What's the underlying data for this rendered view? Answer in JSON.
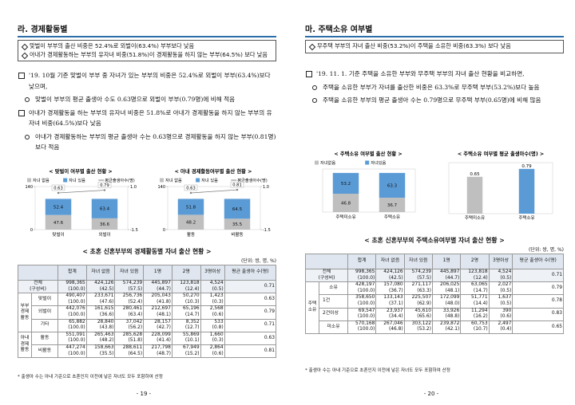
{
  "pages": [
    {
      "title": "라. 경제활동별",
      "summary": [
        "맞벌이 부부의 출산 비중은 52.4%로 외벌이(63.4%) 부부보다 낮음",
        "아내가 경제활동하는 부부의 유자녀 비중(51.8%)이 경제활동을 하지 않는 부부(64.5%) 보다 낮음"
      ],
      "paragraphs": [
        {
          "level": 0,
          "text": "'19. 10월 기준 맞벌이 부부 중 자녀가 있는 부부의 비중은 52.4%로 외벌이 부부(63.4%)보다 낮으며,"
        },
        {
          "level": 1,
          "text": "맞벌이 부부의 평균 출생아 수도 0.63명으로 외벌이 부부(0.79명)에 비해 적음"
        },
        {
          "level": 0,
          "text": "아내가 경제활동을 하는 부부의 유자녀 비중은 51.8%로 아내가 경제활동을 하지 않는 부부의 유자녀 비중(64.5%)보다 낮음"
        },
        {
          "level": 1,
          "text": "아내가 경제활동하는 부부의 평균 출생아 수는 0.63명으로 경제활동을 하지 않는 부부(0.81명) 보다 적음"
        }
      ],
      "charts": [
        {
          "type": "stacked-line",
          "title": "< 맞벌이 여부별 출산 현황 >",
          "categories": [
            "맞벌이",
            "외벌이"
          ],
          "series": [
            {
              "name": "자녀 없음",
              "color": "#bfbfbf",
              "values": [
                47.6,
                36.6
              ]
            },
            {
              "name": "자녀 있음",
              "color": "#5b9bd5",
              "values": [
                52.4,
                63.4
              ]
            }
          ],
          "line": {
            "name": "평균출생아수(명)",
            "color": "#7f7f7f",
            "values": [
              0.63,
              0.79
            ]
          },
          "ylim": [
            0,
            140
          ],
          "yticks": [
            0,
            140
          ],
          "y2lim": [
            -1.5,
            1
          ],
          "y2ticks": [
            {
              "value": -1.5,
              "label": "-1.5"
            },
            {
              "value": 1,
              "label": "1.0"
            }
          ]
        },
        {
          "type": "stacked-line",
          "title": "< 아내 경제활동여부별 출산 현황 >",
          "categories": [
            "활동",
            "비활동"
          ],
          "series": [
            {
              "name": "자녀 없음",
              "color": "#bfbfbf",
              "values": [
                48.2,
                35.5
              ]
            },
            {
              "name": "자녀 있음",
              "color": "#5b9bd5",
              "values": [
                51.8,
                64.5
              ]
            }
          ],
          "line": {
            "name": "평균출생아수(명)",
            "color": "#7f7f7f",
            "values": [
              0.63,
              0.81
            ]
          },
          "ylim": [
            0,
            140
          ],
          "yticks": [
            0,
            140
          ],
          "y2lim": [
            -1.5,
            1
          ],
          "y2ticks": [
            {
              "value": -1.5,
              "label": "-1.5"
            },
            {
              "value": 1,
              "label": "1.0"
            }
          ]
        }
      ],
      "table": {
        "title": "< 초혼 신혼부부의 경제활동별 자녀 출산 현황 >",
        "unit": "(단위: 쌍, 명, %)",
        "headers": [
          "합계",
          "자녀 없음",
          "자녀 있음",
          "1명",
          "2명",
          "3명이상",
          "평균 출생아 수(명)"
        ],
        "total": {
          "label": "전체",
          "sublabel": "(구성비)",
          "values": [
            "998,365",
            "424,126",
            "574,239",
            "445,897",
            "123,818",
            "4,524"
          ],
          "shares": [
            "(100.0)",
            "(42.5)",
            "(57.5)",
            "(44.7)",
            "(12.4)",
            "(0.5)"
          ],
          "avg": "0.71"
        },
        "groups": [
          {
            "label": "부부 경제 활동",
            "rows": [
              {
                "label": "맞벌이",
                "values": [
                  "490,407",
                  "233,671",
                  "256,736",
                  "205,043",
                  "50,270",
                  "1,423"
                ],
                "shares": [
                  "(100.0)",
                  "(47.6)",
                  "(52.4)",
                  "(41.8)",
                  "(10.3)",
                  "(0.3)"
                ],
                "avg": "0.63"
              },
              {
                "label": "외벌이",
                "values": [
                  "442,076",
                  "161,615",
                  "280,461",
                  "212,697",
                  "65,196",
                  "2,568"
                ],
                "shares": [
                  "(100.0)",
                  "(36.6)",
                  "(63.4)",
                  "(48.1)",
                  "(14.7)",
                  "(0.6)"
                ],
                "avg": "0.79"
              },
              {
                "label": "기타",
                "values": [
                  "65,882",
                  "28,840",
                  "37,042",
                  "28,157",
                  "8,352",
                  "533"
                ],
                "shares": [
                  "(100.0)",
                  "(43.8)",
                  "(56.2)",
                  "(42.7)",
                  "(12.7)",
                  "(0.8)"
                ],
                "avg": "0.71"
              }
            ]
          },
          {
            "label": "아내 경제 활동",
            "rows": [
              {
                "label": "활동",
                "values": [
                  "551,091",
                  "265,463",
                  "285,628",
                  "228,099",
                  "55,869",
                  "1,660"
                ],
                "shares": [
                  "(100.0)",
                  "(48.2)",
                  "(51.8)",
                  "(41.4)",
                  "(10.1)",
                  "(0.3)"
                ],
                "avg": "0.63"
              },
              {
                "label": "비활동",
                "values": [
                  "447,274",
                  "158,663",
                  "288,611",
                  "217,798",
                  "67,949",
                  "2,864"
                ],
                "shares": [
                  "(100.0)",
                  "(35.5)",
                  "(64.5)",
                  "(48.7)",
                  "(15.2)",
                  "(0.6)"
                ],
                "avg": "0.81"
              }
            ]
          }
        ]
      },
      "footnote": "* 출생아 수는 아내 기준으로 초혼인지 이전에 낳은 자녀도 모두 포함하여 산정",
      "page_number": "- 19 -"
    },
    {
      "title": "마. 주택소유 여부별",
      "summary": [
        "무주택 부부의 자녀 출산 비중(53.2%)이 주택을 소유한 비중(63.3%) 보다 낮음"
      ],
      "paragraphs": [
        {
          "level": 0,
          "text": "'19. 11. 1. 기준 주택을 소유한 부부와 무주택 부부의 자녀 출산 현황을 비교하면,"
        },
        {
          "level": 1,
          "text": "주택을 소유한 부부가 자녀를 출산한 비중은 63.3%로 무주택 부부(53.2%)보다 높음"
        },
        {
          "level": 1,
          "text": "주택을 소유한 부부의 평균 출생아 수는 0.79명으로 무주택 부부(0.65명)에 비해 많음"
        }
      ],
      "charts": [
        {
          "type": "stacked",
          "title": "< 주택소유 여부별 출산 현황 >",
          "categories": [
            "주택미소유",
            "주택소유"
          ],
          "series": [
            {
              "name": "자녀없음",
              "color": "#bfbfbf",
              "values": [
                46.8,
                36.7
              ]
            },
            {
              "name": "자녀있음",
              "color": "#5b9bd5",
              "values": [
                53.2,
                63.3
              ]
            }
          ],
          "ylim": [
            0,
            110
          ]
        },
        {
          "type": "bar",
          "title": "< 주택소유 여부별 평균 출생아수(명) >",
          "categories": [
            "주택미소유",
            "주택소유"
          ],
          "values": [
            0.65,
            0.79
          ],
          "colors": [
            "#bfbfbf",
            "#5b9bd5"
          ],
          "ylim": [
            0,
            0.9
          ]
        }
      ],
      "table": {
        "title": "< 초혼 신혼부부의 주택소유여부별 자녀 출산 현황 >",
        "unit": "(단위: 쌍, 명, %)",
        "headers": [
          "합계",
          "자녀 없음",
          "자녀 있음",
          "1명",
          "2명",
          "3명이상",
          "평균 출생아 수(명)"
        ],
        "total": {
          "label": "전체",
          "sublabel": "(구성비)",
          "values": [
            "998,365",
            "424,126",
            "574,239",
            "445,897",
            "123,818",
            "4,524"
          ],
          "shares": [
            "(100.0)",
            "(42.5)",
            "(57.5)",
            "(44.7)",
            "(12.4)",
            "(0.5)"
          ],
          "avg": "0.71"
        },
        "groups": [
          {
            "label": "주택 소유",
            "rows": [
              {
                "label": "소유",
                "values": [
                  "428,197",
                  "157,080",
                  "271,117",
                  "206,025",
                  "63,065",
                  "2,027"
                ],
                "shares": [
                  "(100.0)",
                  "(36.7)",
                  "(63.3)",
                  "(48.1)",
                  "(14.7)",
                  "(0.5)"
                ],
                "avg": "0.79"
              },
              {
                "label": "1건",
                "sub": true,
                "values": [
                  "358,650",
                  "133,143",
                  "225,507",
                  "172,099",
                  "51,771",
                  "1,637"
                ],
                "shares": [
                  "(100.0)",
                  "(37.1)",
                  "(62.9)",
                  "(48.0)",
                  "(14.4)",
                  "(0.5)"
                ],
                "avg": "0.78"
              },
              {
                "label": "2건이상",
                "sub": true,
                "values": [
                  "69,547",
                  "23,937",
                  "45,610",
                  "33,926",
                  "11,294",
                  "390"
                ],
                "shares": [
                  "(100.0)",
                  "(34.4)",
                  "(65.6)",
                  "(48.8)",
                  "(16.2)",
                  "(0.6)"
                ],
                "avg": "0.83"
              },
              {
                "label": "미소유",
                "values": [
                  "570,168",
                  "267,046",
                  "303,122",
                  "239,872",
                  "60,753",
                  "2,497"
                ],
                "shares": [
                  "(100.0)",
                  "(46.8)",
                  "(53.2)",
                  "(42.1)",
                  "(10.7)",
                  "(0.4)"
                ],
                "avg": "0.65"
              }
            ]
          }
        ]
      },
      "footnote": "* 출생아 수는 아내 기준으로 초혼인지 이전에 낳은 자녀도 모두 포함하여 산정",
      "page_number": "- 20 -"
    }
  ]
}
